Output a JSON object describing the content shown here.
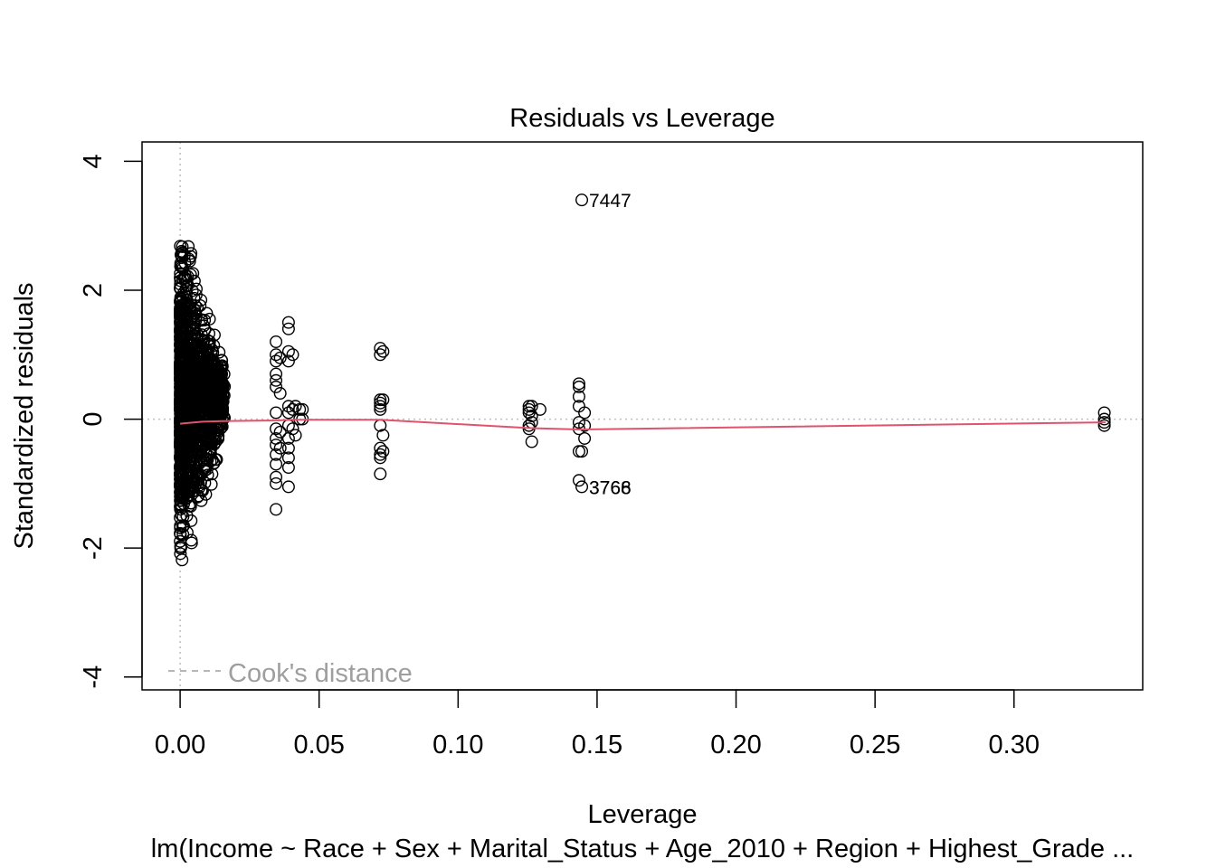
{
  "chart_data": {
    "type": "scatter",
    "title": "Residuals vs Leverage",
    "xlabel": "Leverage",
    "ylabel": "Standardized residuals",
    "subtitle": "lm(Income ~ Race + Sex + Marital_Status + Age_2010 + Region + Highest_Grade ...",
    "xlim": [
      -0.0137,
      0.3463
    ],
    "ylim": [
      -4.2,
      4.3
    ],
    "x_ticks": [
      0.0,
      0.05,
      0.1,
      0.15,
      0.2,
      0.25,
      0.3
    ],
    "x_tick_labels": [
      "0.00",
      "0.05",
      "0.10",
      "0.15",
      "0.20",
      "0.25",
      "0.30"
    ],
    "y_ticks": [
      -4,
      -2,
      0,
      2,
      4
    ],
    "y_tick_labels": [
      "-4",
      "-2",
      "0",
      "2",
      "4"
    ],
    "reference_lines": {
      "x": 0,
      "y": 0,
      "style": "dotted",
      "color": "#bebebe"
    },
    "legend": {
      "label": "Cook's distance",
      "placement": "bottom-left",
      "line_style": "dashed",
      "color": "#9e9e9e"
    },
    "smoother": {
      "name": "",
      "color": "#df536b",
      "x": [
        0.0,
        0.003,
        0.008,
        0.015,
        0.035,
        0.04,
        0.072,
        0.126,
        0.144,
        0.333
      ],
      "y": [
        -0.07,
        -0.06,
        -0.04,
        -0.03,
        -0.02,
        -0.01,
        -0.01,
        -0.14,
        -0.16,
        -0.05
      ]
    },
    "dense_cluster": {
      "description_x_range": [
        0.0,
        0.016
      ],
      "y_range": [
        -3.2,
        3.6
      ]
    },
    "series": [
      {
        "name": "",
        "points": [
          [
            0.0345,
            1.2
          ],
          [
            0.0345,
            1.0
          ],
          [
            0.0345,
            0.9
          ],
          [
            0.0345,
            0.7
          ],
          [
            0.0345,
            0.6
          ],
          [
            0.0345,
            0.5
          ],
          [
            0.0345,
            0.1
          ],
          [
            0.0345,
            -0.15
          ],
          [
            0.0345,
            -0.3
          ],
          [
            0.0345,
            -0.4
          ],
          [
            0.0345,
            -0.55
          ],
          [
            0.0345,
            -0.7
          ],
          [
            0.0345,
            -0.9
          ],
          [
            0.0345,
            -1.0
          ],
          [
            0.0345,
            -1.4
          ],
          [
            0.036,
            0.95
          ],
          [
            0.036,
            0.4
          ],
          [
            0.036,
            -0.2
          ],
          [
            0.036,
            -0.45
          ],
          [
            0.039,
            1.5
          ],
          [
            0.039,
            1.4
          ],
          [
            0.039,
            1.05
          ],
          [
            0.039,
            0.9
          ],
          [
            0.039,
            0.2
          ],
          [
            0.039,
            0.1
          ],
          [
            0.039,
            -0.1
          ],
          [
            0.039,
            -0.3
          ],
          [
            0.039,
            -0.45
          ],
          [
            0.039,
            -0.6
          ],
          [
            0.039,
            -0.75
          ],
          [
            0.039,
            -1.05
          ],
          [
            0.0405,
            1.0
          ],
          [
            0.0405,
            0.15
          ],
          [
            0.0405,
            -0.15
          ],
          [
            0.0415,
            0.2
          ],
          [
            0.0415,
            -0.25
          ],
          [
            0.043,
            0.15
          ],
          [
            0.043,
            0.0
          ],
          [
            0.044,
            0.15
          ],
          [
            0.044,
            0.0
          ],
          [
            0.072,
            1.1
          ],
          [
            0.072,
            1.0
          ],
          [
            0.072,
            0.3
          ],
          [
            0.072,
            0.25
          ],
          [
            0.072,
            0.2
          ],
          [
            0.072,
            0.15
          ],
          [
            0.072,
            -0.1
          ],
          [
            0.072,
            -0.45
          ],
          [
            0.072,
            -0.55
          ],
          [
            0.072,
            -0.6
          ],
          [
            0.072,
            -0.85
          ],
          [
            0.073,
            1.05
          ],
          [
            0.073,
            0.3
          ],
          [
            0.073,
            -0.25
          ],
          [
            0.073,
            -0.5
          ],
          [
            0.1255,
            0.2
          ],
          [
            0.1255,
            0.15
          ],
          [
            0.1255,
            0.1
          ],
          [
            0.1255,
            -0.1
          ],
          [
            0.1255,
            -0.15
          ],
          [
            0.1265,
            0.2
          ],
          [
            0.1265,
            0.05
          ],
          [
            0.1265,
            -0.05
          ],
          [
            0.1265,
            -0.35
          ],
          [
            0.1295,
            0.15
          ],
          [
            0.1435,
            0.55
          ],
          [
            0.1435,
            0.5
          ],
          [
            0.1435,
            0.35
          ],
          [
            0.1435,
            0.2
          ],
          [
            0.1435,
            -0.05
          ],
          [
            0.1435,
            -0.15
          ],
          [
            0.1435,
            -0.5
          ],
          [
            0.1435,
            -0.95
          ],
          [
            0.1445,
            -1.05
          ],
          [
            0.1445,
            -0.5
          ],
          [
            0.1445,
            3.4
          ],
          [
            0.1455,
            0.1
          ],
          [
            0.1455,
            -0.1
          ],
          [
            0.1455,
            -0.3
          ],
          [
            0.3325,
            0.1
          ],
          [
            0.3325,
            0.0
          ],
          [
            0.3325,
            -0.05
          ],
          [
            0.3325,
            -0.1
          ]
        ]
      }
    ],
    "labeled_points": [
      {
        "label": "7447",
        "x": 0.1445,
        "y": 3.4
      },
      {
        "label": "3768",
        "x": 0.1445,
        "y": -1.05
      },
      {
        "label": "3766",
        "x": 0.1445,
        "y": -1.05
      }
    ]
  }
}
